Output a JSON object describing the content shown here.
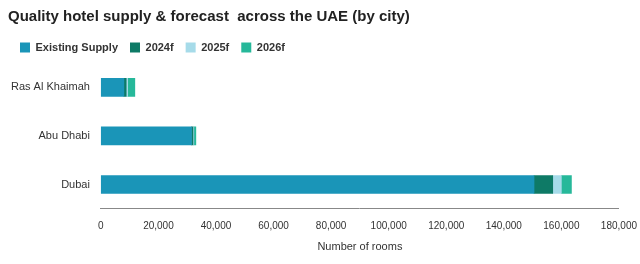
{
  "chart_data": {
    "type": "bar",
    "title": "Quality hotel supply & forecast  across the UAE (by city)",
    "x_label": "Number of rooms",
    "orientation": "horizontal",
    "stacked": true,
    "grid": false,
    "legend": "top-left",
    "categories": [
      "Ras Al Khaimah",
      "Abu Dhabi",
      "Dubai"
    ],
    "series": [
      {
        "name": "Existing Supply",
        "color": "#1a95b8",
        "values": [
          8000,
          31500,
          150500
        ]
      },
      {
        "name": "2024f",
        "color": "#0e7a66",
        "values": [
          800,
          500,
          6500
        ]
      },
      {
        "name": "2025f",
        "color": "#a6dbe9",
        "values": [
          500,
          300,
          3000
        ]
      },
      {
        "name": "2026f",
        "color": "#26b89a",
        "values": [
          2500,
          700,
          3500
        ]
      }
    ],
    "xlim": [
      0,
      180000
    ],
    "xticks": [
      0,
      {
        "value": 20000,
        "label": "20,000"
      },
      {
        "value": 40000,
        "label": "40,000"
      },
      {
        "value": 60000,
        "label": "60,000"
      },
      {
        "value": 80000,
        "label": "80,000"
      },
      {
        "value": 100000,
        "label": "100,000"
      },
      {
        "value": 120000,
        "label": "120,000"
      },
      {
        "value": 140000,
        "label": "140,000"
      },
      {
        "value": 160000,
        "label": "160,000"
      },
      {
        "value": 180000,
        "label": "180,000"
      }
    ]
  }
}
